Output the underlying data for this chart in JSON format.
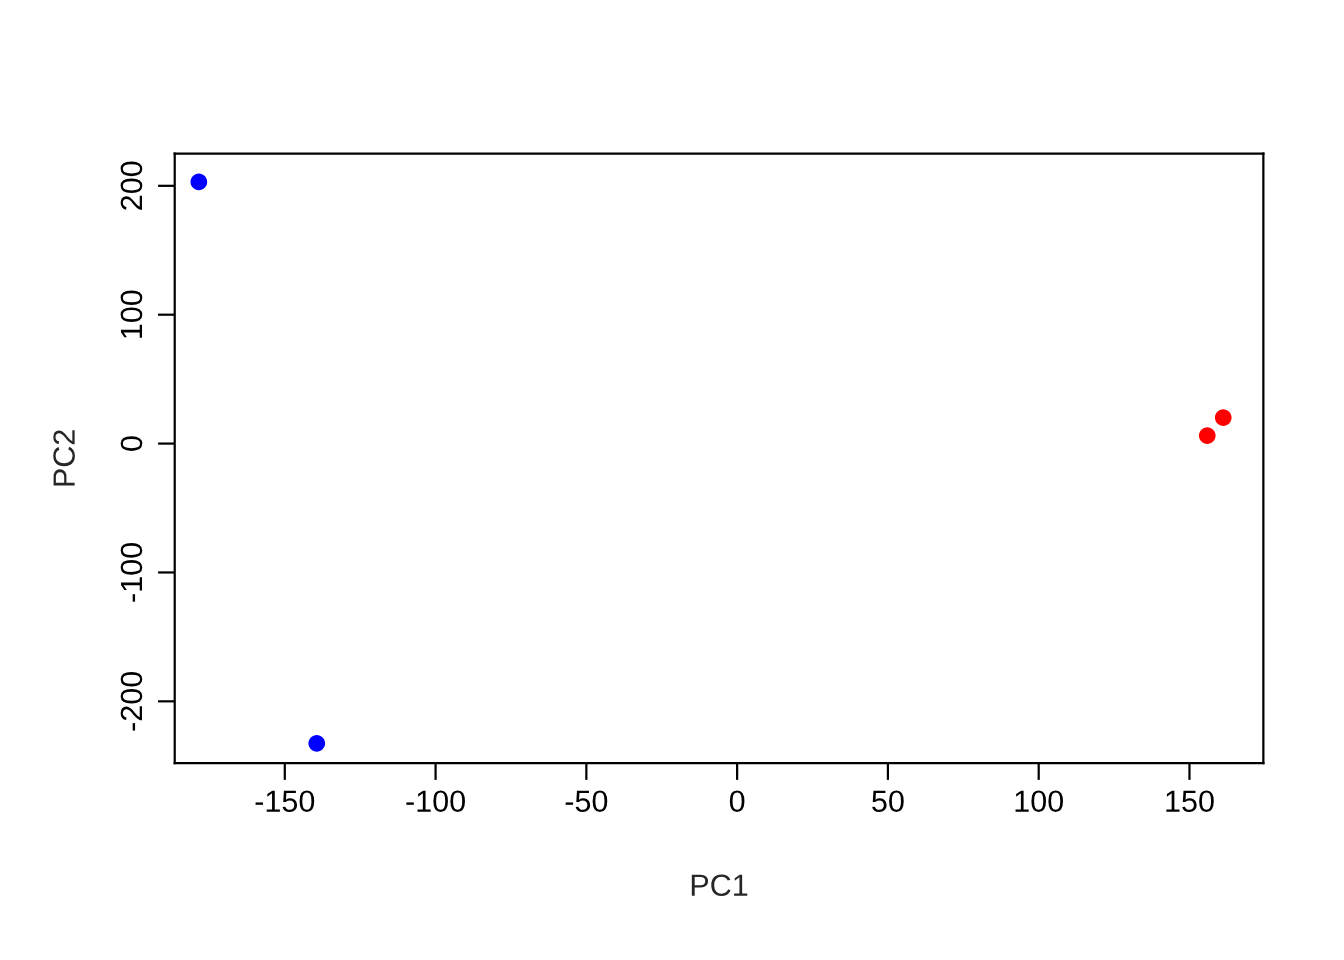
{
  "chart_data": {
    "type": "scatter",
    "xlabel": "PC1",
    "ylabel": "PC2",
    "x": [
      -178.5,
      -139.4,
      155.9,
      161.2
    ],
    "values": [
      203,
      -232.6,
      6.2,
      20.2
    ],
    "colors": [
      "#0000ff",
      "#0000ff",
      "#ff0000",
      "#ff0000"
    ],
    "marker": "circle",
    "xlim": [
      -186.5,
      174.5
    ],
    "ylim": [
      -248,
      225
    ],
    "xticks": [
      -150,
      -100,
      -50,
      0,
      50,
      100,
      150
    ],
    "yticks": [
      -200,
      -100,
      0,
      100,
      200
    ],
    "grid": false,
    "legend": false
  }
}
